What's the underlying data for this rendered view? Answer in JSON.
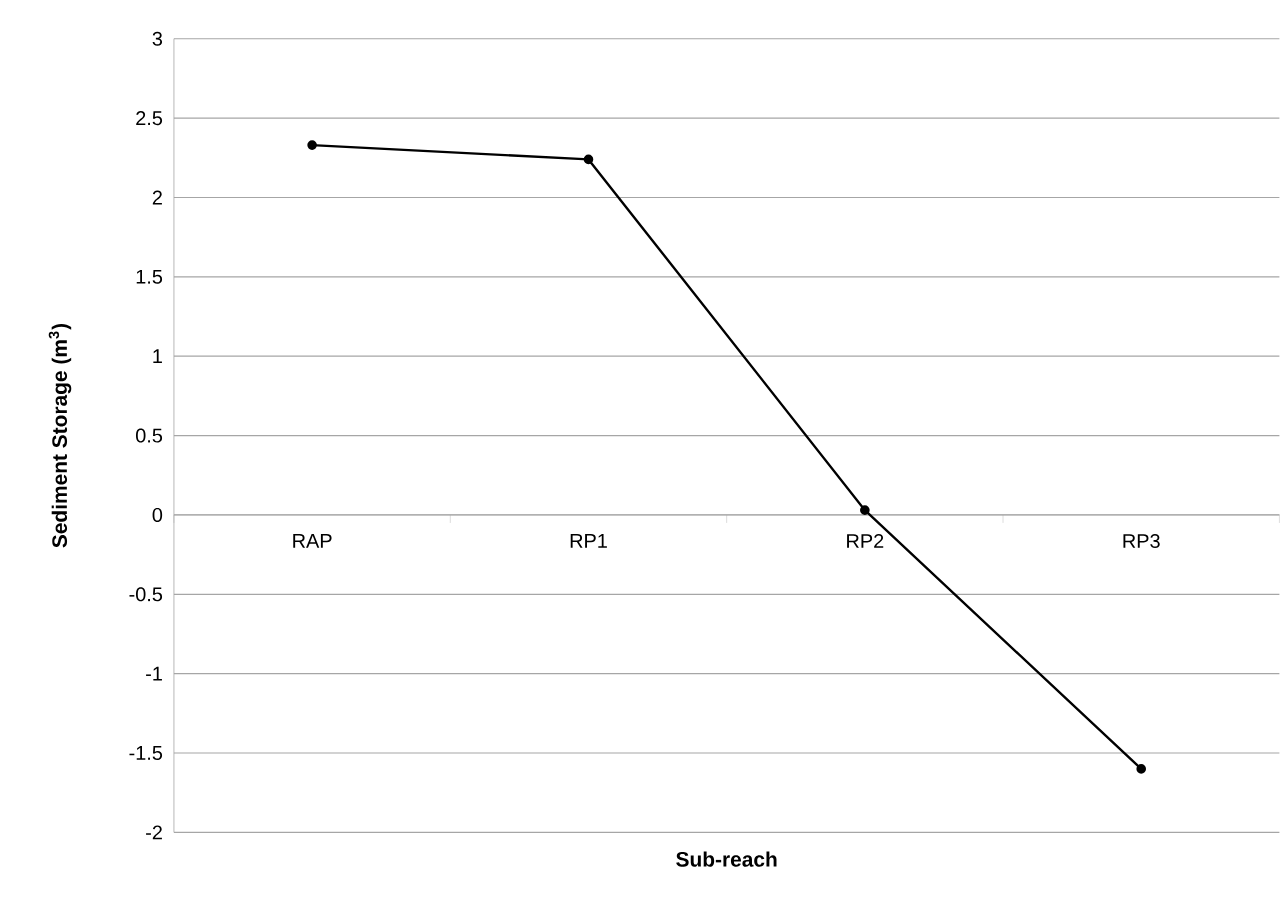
{
  "chart_data": {
    "type": "line",
    "xlabel": "Sub-reach",
    "ylabel": "Sediment Storage (m$^{3}$)",
    "categories": [
      "RAP",
      "RP1",
      "RP2",
      "RP3"
    ],
    "values": [
      2.33,
      2.24,
      0.03,
      -1.6
    ],
    "color": "#000000",
    "marker": "circle",
    "grid": "y",
    "ylim": [
      -2,
      3
    ],
    "yticks": [
      -2,
      -1.5,
      -1,
      -0.5,
      0,
      0.5,
      1,
      1.5,
      2,
      2.5,
      3
    ]
  }
}
